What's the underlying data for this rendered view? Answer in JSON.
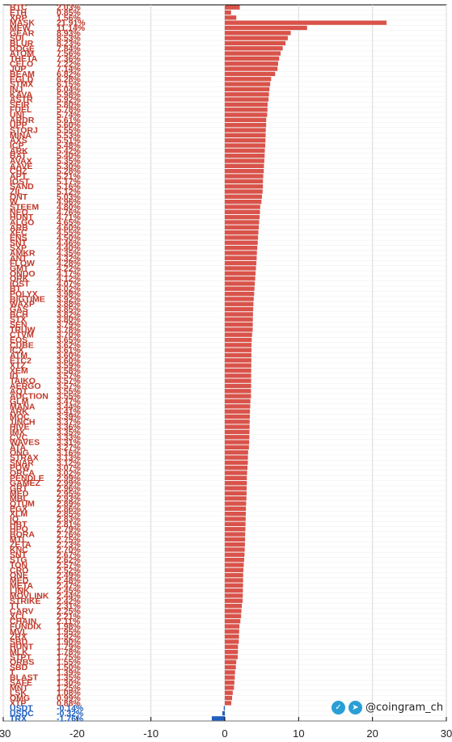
{
  "watermark": {
    "handle": "@coingram_ch",
    "icons": [
      "twitter-icon",
      "telegram-icon"
    ]
  },
  "chart_data": {
    "type": "bar",
    "orientation": "horizontal",
    "title": "",
    "xlabel": "",
    "ylabel": "",
    "xlim": [
      -30,
      30
    ],
    "xticks": [
      -30,
      -20,
      -10,
      0,
      10,
      20,
      30
    ],
    "grid": true,
    "legend": "none",
    "colors": {
      "positive": "#d9534a",
      "negative": "#1f5fbf",
      "label_positive": "#c0392b",
      "label_negative": "#1f5fbf",
      "grid": "#d9d9d9"
    },
    "items": [
      {
        "name": "BTC",
        "value": 2.03
      },
      {
        "name": "ETH",
        "value": 0.85
      },
      {
        "name": "XRP",
        "value": 1.56
      },
      {
        "name": "MASK",
        "value": 21.91
      },
      {
        "name": "MEW",
        "value": 11.14
      },
      {
        "name": "GEAR",
        "value": 8.93
      },
      {
        "name": "SUI",
        "value": 8.53
      },
      {
        "name": "BLUR",
        "value": 8.23
      },
      {
        "name": "DOGE",
        "value": 7.84
      },
      {
        "name": "ATOM",
        "value": 7.56
      },
      {
        "name": "THETA",
        "value": 7.36
      },
      {
        "name": "CELO",
        "value": 7.22
      },
      {
        "name": "JUP",
        "value": 7.14
      },
      {
        "name": "BEAM",
        "value": 6.82
      },
      {
        "name": "EGLD",
        "value": 6.28
      },
      {
        "name": "STMX",
        "value": 6.15
      },
      {
        "name": "INJ",
        "value": 6.04
      },
      {
        "name": "KAVA",
        "value": 5.98
      },
      {
        "name": "ASTR",
        "value": 5.92
      },
      {
        "name": "SEIR",
        "value": 5.8
      },
      {
        "name": "FUEL",
        "value": 5.78
      },
      {
        "name": "UNI",
        "value": 5.74
      },
      {
        "name": "ARDR",
        "value": 5.61
      },
      {
        "name": "UPP",
        "value": 5.6
      },
      {
        "name": "STORJ",
        "value": 5.55
      },
      {
        "name": "MINA",
        "value": 5.53
      },
      {
        "name": "AXS",
        "value": 5.51
      },
      {
        "name": "ICP",
        "value": 5.48
      },
      {
        "name": "ARK",
        "value": 5.42
      },
      {
        "name": "BAT",
        "value": 5.4
      },
      {
        "name": "AVAX",
        "value": 5.35
      },
      {
        "name": "AAVE",
        "value": 5.3
      },
      {
        "name": "CHZ",
        "value": 5.28
      },
      {
        "name": "APT",
        "value": 5.21
      },
      {
        "name": "IOST",
        "value": 5.17
      },
      {
        "name": "SAND",
        "value": 5.16
      },
      {
        "name": "ZIL",
        "value": 5.12
      },
      {
        "name": "ONT",
        "value": 5.03
      },
      {
        "name": "W",
        "value": 4.96
      },
      {
        "name": "STEEM",
        "value": 4.8
      },
      {
        "name": "NEO",
        "value": 4.76
      },
      {
        "name": "HUNT",
        "value": 4.71
      },
      {
        "name": "ALGO",
        "value": 4.65
      },
      {
        "name": "ARB",
        "value": 4.6
      },
      {
        "name": "XEC",
        "value": 4.55
      },
      {
        "name": "ENS",
        "value": 4.5
      },
      {
        "name": "SNT",
        "value": 4.46
      },
      {
        "name": "SXP",
        "value": 4.4
      },
      {
        "name": "AMKR",
        "value": 4.35
      },
      {
        "name": "ANT",
        "value": 4.32
      },
      {
        "name": "FLOW",
        "value": 4.28
      },
      {
        "name": "GMT",
        "value": 4.22
      },
      {
        "name": "ONDO",
        "value": 4.17
      },
      {
        "name": "ORK",
        "value": 4.12
      },
      {
        "name": "IOST",
        "value": 4.07
      },
      {
        "name": "BT",
        "value": 4.02
      },
      {
        "name": "POLYX",
        "value": 3.98
      },
      {
        "name": "BIGTIME",
        "value": 3.92
      },
      {
        "name": "WAXP",
        "value": 3.88
      },
      {
        "name": "GAS",
        "value": 3.85
      },
      {
        "name": "BCH",
        "value": 3.82
      },
      {
        "name": "STX",
        "value": 3.8
      },
      {
        "name": "SEN",
        "value": 3.79
      },
      {
        "name": "TRUW",
        "value": 3.78
      },
      {
        "name": "CTVM",
        "value": 3.7
      },
      {
        "name": "EOS",
        "value": 3.65
      },
      {
        "name": "CUBE",
        "value": 3.62
      },
      {
        "name": "ICX",
        "value": 3.61
      },
      {
        "name": "ATM",
        "value": 3.6
      },
      {
        "name": "ETC2",
        "value": 3.6
      },
      {
        "name": "XTZ",
        "value": 3.59
      },
      {
        "name": "XEM",
        "value": 3.58
      },
      {
        "name": "ID",
        "value": 3.57
      },
      {
        "name": "TAIKO",
        "value": 3.57
      },
      {
        "name": "AERGO",
        "value": 3.57
      },
      {
        "name": "AQT",
        "value": 3.55
      },
      {
        "name": "AUCTION",
        "value": 3.55
      },
      {
        "name": "GLM",
        "value": 3.47
      },
      {
        "name": "MANA",
        "value": 3.44
      },
      {
        "name": "ARK",
        "value": 3.41
      },
      {
        "name": "MOC",
        "value": 3.39
      },
      {
        "name": "1INCH",
        "value": 3.37
      },
      {
        "name": "HIVE",
        "value": 3.36
      },
      {
        "name": "IMX",
        "value": 3.35
      },
      {
        "name": "CVC",
        "value": 3.33
      },
      {
        "name": "WAVES",
        "value": 3.31
      },
      {
        "name": "ATA",
        "value": 3.27
      },
      {
        "name": "ONG",
        "value": 3.16
      },
      {
        "name": "STRAX",
        "value": 3.13
      },
      {
        "name": "SNAR",
        "value": 3.12
      },
      {
        "name": "POW",
        "value": 3.07
      },
      {
        "name": "ORCA",
        "value": 3.02
      },
      {
        "name": "PENDLE",
        "value": 2.99
      },
      {
        "name": "GAMEZ",
        "value": 2.99
      },
      {
        "name": "GRT",
        "value": 2.96
      },
      {
        "name": "MED",
        "value": 2.95
      },
      {
        "name": "MBL",
        "value": 2.93
      },
      {
        "name": "QTUM",
        "value": 2.89
      },
      {
        "name": "EGX",
        "value": 2.86
      },
      {
        "name": "XLM",
        "value": 2.85
      },
      {
        "name": "IQ",
        "value": 2.83
      },
      {
        "name": "HBT",
        "value": 2.81
      },
      {
        "name": "HPO",
        "value": 2.79
      },
      {
        "name": "BORA",
        "value": 2.76
      },
      {
        "name": "MTL",
        "value": 2.75
      },
      {
        "name": "ZETA",
        "value": 2.73
      },
      {
        "name": "KNC",
        "value": 2.7
      },
      {
        "name": "SNT",
        "value": 2.67
      },
      {
        "name": "STG",
        "value": 2.62
      },
      {
        "name": "TON",
        "value": 2.57
      },
      {
        "name": "CRO",
        "value": 2.52
      },
      {
        "name": "ONE",
        "value": 2.49
      },
      {
        "name": "MED",
        "value": 2.48
      },
      {
        "name": "META",
        "value": 2.47
      },
      {
        "name": "LINK",
        "value": 2.45
      },
      {
        "name": "MOVLINK",
        "value": 2.44
      },
      {
        "name": "STRIKE",
        "value": 2.42
      },
      {
        "name": "TT",
        "value": 2.31
      },
      {
        "name": "CARV",
        "value": 2.25
      },
      {
        "name": "XCL",
        "value": 2.21
      },
      {
        "name": "CHAIN",
        "value": 2.11
      },
      {
        "name": "FUNDIX",
        "value": 1.98
      },
      {
        "name": "MVL",
        "value": 1.95
      },
      {
        "name": "ZRX",
        "value": 1.92
      },
      {
        "name": "SBD",
        "value": 1.9
      },
      {
        "name": "HUNT",
        "value": 1.79
      },
      {
        "name": "MLK",
        "value": 1.78
      },
      {
        "name": "STPT",
        "value": 1.75
      },
      {
        "name": "ORBS",
        "value": 1.55
      },
      {
        "name": "SBD",
        "value": 1.5
      },
      {
        "name": "T",
        "value": 1.39
      },
      {
        "name": "BLAST",
        "value": 1.35
      },
      {
        "name": "SAFE",
        "value": 1.3
      },
      {
        "name": "MNT",
        "value": 1.25
      },
      {
        "name": "LSK",
        "value": 1.08
      },
      {
        "name": "OMG",
        "value": 0.99
      },
      {
        "name": "XTP",
        "value": 0.88
      },
      {
        "name": "USDT",
        "value": -0.14
      },
      {
        "name": "USDC",
        "value": -0.32
      },
      {
        "name": "TRX",
        "value": -1.76
      }
    ]
  }
}
